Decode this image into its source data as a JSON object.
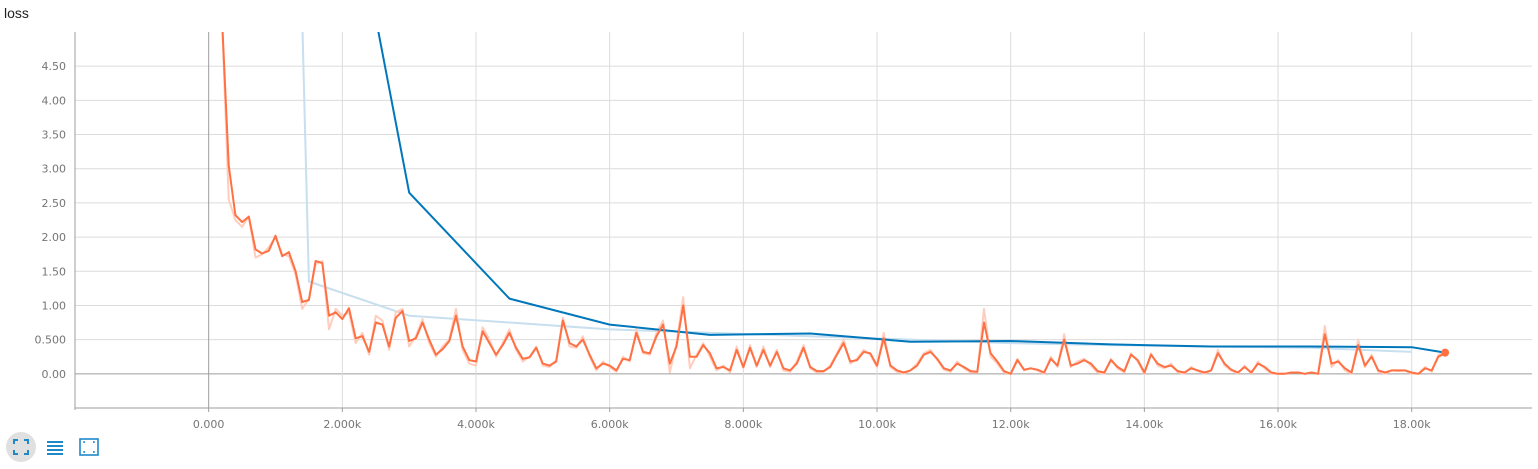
{
  "title": "loss",
  "colors": {
    "grid": "#dcdcdc",
    "zero_axis": "#9e9e9e",
    "raw_orange": "#ffcdbd",
    "orange": "#ff7043",
    "raw_blue": "#c7dfef",
    "blue": "#0077bb",
    "icon": "#1e88c9"
  },
  "toolbar": [
    {
      "icon": "fullscreen-icon"
    },
    {
      "icon": "list-icon"
    },
    {
      "icon": "fit-domain-icon"
    }
  ],
  "chart_data": {
    "type": "line",
    "title": "loss",
    "xlim": [
      -2000,
      19800
    ],
    "ylim": [
      -0.5,
      5.0
    ],
    "x_ticks": [
      0,
      2000,
      4000,
      6000,
      8000,
      10000,
      12000,
      14000,
      16000,
      18000
    ],
    "x_tick_labels": [
      "0.000",
      "2.000k",
      "4.000k",
      "6.000k",
      "8.000k",
      "10.00k",
      "12.00k",
      "14.00k",
      "16.00k",
      "18.00k"
    ],
    "y_ticks": [
      0,
      0.5,
      1.0,
      1.5,
      2.0,
      2.5,
      3.0,
      3.5,
      4.0,
      4.5
    ],
    "y_tick_labels": [
      "0.00",
      "0.500",
      "1.00",
      "1.50",
      "2.00",
      "2.50",
      "3.00",
      "3.50",
      "4.00",
      "4.50"
    ],
    "grid": true,
    "series": [
      {
        "color": "#0077bb",
        "raw_color": "#c7dfef",
        "raw": {
          "x": [
            1400,
            1500,
            3000,
            4500,
            6000,
            7500,
            9000,
            10500,
            12000,
            13500,
            15000,
            16500,
            18000
          ],
          "y": [
            5.2,
            1.35,
            0.85,
            0.75,
            0.65,
            0.6,
            0.55,
            0.5,
            0.45,
            0.42,
            0.4,
            0.38,
            0.32
          ]
        },
        "smoothed": {
          "x": [
            2500,
            3000,
            4500,
            6000,
            7500,
            9000,
            10500,
            12000,
            13500,
            15000,
            16500,
            18000,
            18500
          ],
          "y": [
            5.2,
            2.65,
            1.1,
            0.72,
            0.57,
            0.59,
            0.47,
            0.48,
            0.43,
            0.4,
            0.4,
            0.39,
            0.31
          ]
        }
      },
      {
        "color": "#ff7043",
        "raw_color": "#ffcdbd",
        "x": [
          200,
          300,
          400,
          500,
          600,
          700,
          800,
          900,
          1000,
          1100,
          1200,
          1300,
          1400,
          1500,
          1600,
          1700,
          1800,
          1900,
          2000,
          2100,
          2200,
          2300,
          2400,
          2500,
          2600,
          2700,
          2800,
          2900,
          3000,
          3100,
          3200,
          3300,
          3400,
          3500,
          3600,
          3700,
          3800,
          3900,
          4000,
          4100,
          4200,
          4300,
          4400,
          4500,
          4600,
          4700,
          4800,
          4900,
          5000,
          5100,
          5200,
          5300,
          5400,
          5500,
          5600,
          5700,
          5800,
          5900,
          6000,
          6100,
          6200,
          6300,
          6400,
          6500,
          6600,
          6700,
          6800,
          6900,
          7000,
          7100,
          7200,
          7300,
          7400,
          7500,
          7600,
          7700,
          7800,
          7900,
          8000,
          8100,
          8200,
          8300,
          8400,
          8500,
          8600,
          8700,
          8800,
          8900,
          9000,
          9100,
          9200,
          9300,
          9400,
          9500,
          9600,
          9700,
          9800,
          9900,
          10000,
          10100,
          10200,
          10300,
          10400,
          10500,
          10600,
          10700,
          10800,
          10900,
          11000,
          11100,
          11200,
          11300,
          11400,
          11500,
          11600,
          11700,
          11800,
          11900,
          12000,
          12100,
          12200,
          12300,
          12400,
          12500,
          12600,
          12700,
          12800,
          12900,
          13000,
          13100,
          13200,
          13300,
          13400,
          13500,
          13600,
          13700,
          13800,
          13900,
          14000,
          14100,
          14200,
          14300,
          14400,
          14500,
          14600,
          14700,
          14800,
          14900,
          15000,
          15100,
          15200,
          15300,
          15400,
          15500,
          15600,
          15700,
          15800,
          15900,
          16000,
          16100,
          16200,
          16300,
          16400,
          16500,
          16600,
          16700,
          16800,
          16900,
          17000,
          17100,
          17200,
          17300,
          17400,
          17500,
          17600,
          17700,
          17800,
          17900,
          18000,
          18100,
          18200,
          18300,
          18400,
          18500
        ],
        "smoothed": [
          5.2,
          3.05,
          2.32,
          2.22,
          2.3,
          1.82,
          1.76,
          1.8,
          2.02,
          1.72,
          1.78,
          1.5,
          1.05,
          1.08,
          1.65,
          1.62,
          0.85,
          0.9,
          0.8,
          0.96,
          0.52,
          0.55,
          0.32,
          0.75,
          0.72,
          0.4,
          0.82,
          0.92,
          0.48,
          0.52,
          0.75,
          0.5,
          0.28,
          0.36,
          0.48,
          0.85,
          0.4,
          0.2,
          0.18,
          0.62,
          0.45,
          0.28,
          0.42,
          0.6,
          0.38,
          0.22,
          0.24,
          0.38,
          0.15,
          0.12,
          0.18,
          0.78,
          0.45,
          0.4,
          0.5,
          0.28,
          0.08,
          0.15,
          0.12,
          0.05,
          0.22,
          0.2,
          0.6,
          0.32,
          0.3,
          0.55,
          0.72,
          0.15,
          0.4,
          1.0,
          0.25,
          0.25,
          0.42,
          0.3,
          0.08,
          0.1,
          0.05,
          0.35,
          0.1,
          0.38,
          0.12,
          0.35,
          0.12,
          0.32,
          0.08,
          0.05,
          0.15,
          0.38,
          0.1,
          0.04,
          0.04,
          0.1,
          0.28,
          0.45,
          0.18,
          0.2,
          0.32,
          0.3,
          0.12,
          0.52,
          0.12,
          0.05,
          0.02,
          0.05,
          0.12,
          0.28,
          0.32,
          0.22,
          0.08,
          0.05,
          0.15,
          0.1,
          0.04,
          0.03,
          0.75,
          0.3,
          0.18,
          0.04,
          0.0,
          0.2,
          0.06,
          0.08,
          0.06,
          0.02,
          0.22,
          0.12,
          0.5,
          0.12,
          0.15,
          0.2,
          0.15,
          0.04,
          0.02,
          0.2,
          0.1,
          0.04,
          0.28,
          0.2,
          0.02,
          0.28,
          0.15,
          0.1,
          0.12,
          0.04,
          0.02,
          0.08,
          0.05,
          0.02,
          0.05,
          0.3,
          0.15,
          0.06,
          0.02,
          0.1,
          0.02,
          0.15,
          0.1,
          0.02,
          0.0,
          0.0,
          0.02,
          0.02,
          0.0,
          0.02,
          0.0,
          0.58,
          0.15,
          0.18,
          0.08,
          0.02,
          0.42,
          0.12,
          0.25,
          0.05,
          0.02,
          0.05,
          0.05,
          0.05,
          0.02,
          0.0,
          0.08,
          0.05,
          0.25,
          0.3
        ],
        "raw": [
          5.2,
          2.55,
          2.25,
          2.15,
          2.3,
          1.7,
          1.75,
          1.85,
          2.0,
          1.75,
          1.72,
          1.45,
          0.95,
          1.1,
          1.6,
          1.65,
          0.65,
          0.95,
          0.85,
          0.9,
          0.45,
          0.6,
          0.28,
          0.85,
          0.78,
          0.35,
          0.9,
          0.95,
          0.4,
          0.55,
          0.8,
          0.45,
          0.25,
          0.4,
          0.5,
          0.95,
          0.35,
          0.15,
          0.12,
          0.68,
          0.5,
          0.25,
          0.45,
          0.65,
          0.35,
          0.18,
          0.25,
          0.4,
          0.12,
          0.1,
          0.2,
          0.82,
          0.4,
          0.38,
          0.55,
          0.25,
          0.05,
          0.18,
          0.1,
          0.03,
          0.25,
          0.18,
          0.65,
          0.3,
          0.28,
          0.6,
          0.78,
          0.02,
          0.45,
          1.12,
          0.08,
          0.28,
          0.45,
          0.25,
          0.05,
          0.12,
          0.02,
          0.4,
          0.08,
          0.42,
          0.1,
          0.4,
          0.1,
          0.35,
          0.05,
          0.03,
          0.18,
          0.42,
          0.08,
          0.02,
          0.03,
          0.12,
          0.3,
          0.5,
          0.15,
          0.22,
          0.35,
          0.28,
          0.1,
          0.6,
          0.1,
          0.03,
          0.0,
          0.05,
          0.15,
          0.3,
          0.35,
          0.2,
          0.06,
          0.03,
          0.18,
          0.08,
          0.02,
          0.02,
          0.95,
          0.25,
          0.15,
          0.02,
          0.0,
          0.22,
          0.05,
          0.08,
          0.05,
          0.0,
          0.25,
          0.1,
          0.58,
          0.1,
          0.18,
          0.22,
          0.12,
          0.02,
          0.0,
          0.22,
          0.08,
          0.02,
          0.3,
          0.18,
          0.0,
          0.3,
          0.12,
          0.08,
          0.15,
          0.02,
          0.0,
          0.1,
          0.04,
          0.0,
          0.05,
          0.35,
          0.12,
          0.05,
          0.0,
          0.12,
          0.0,
          0.18,
          0.08,
          0.0,
          0.0,
          0.0,
          0.02,
          0.02,
          0.0,
          0.02,
          0.0,
          0.7,
          0.1,
          0.2,
          0.05,
          0.0,
          0.5,
          0.1,
          0.28,
          0.03,
          0.0,
          0.05,
          0.04,
          0.05,
          0.0,
          0.0,
          0.1,
          0.03,
          0.28,
          0.32
        ]
      }
    ],
    "end_marker": {
      "x": 18500,
      "y": 0.31
    }
  }
}
